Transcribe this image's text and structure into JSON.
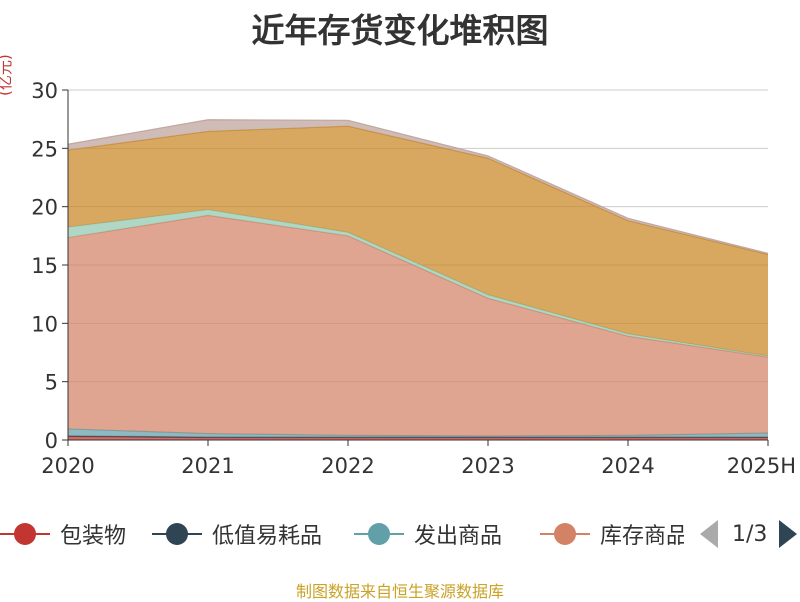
{
  "title": "近年存货变化堆积图",
  "unit": "(亿元)",
  "source": "制图数据来自恒生聚源数据库",
  "pager": "1/3",
  "chart_data": {
    "type": "area",
    "stacked": true,
    "categories": [
      "2020",
      "2021",
      "2022",
      "2023",
      "2024",
      "2025H"
    ],
    "ylim": [
      0,
      30
    ],
    "yticks": [
      0,
      5,
      10,
      15,
      20,
      25,
      30
    ],
    "series": [
      {
        "name": "包装物",
        "color": "#c23531",
        "values": [
          0.3,
          0.2,
          0.2,
          0.2,
          0.2,
          0.2
        ]
      },
      {
        "name": "低值易耗品",
        "color": "#2f4554",
        "values": [
          0.05,
          0.05,
          0.05,
          0.05,
          0.05,
          0.05
        ]
      },
      {
        "name": "发出商品",
        "color": "#61a0a8",
        "values": [
          0.6,
          0.3,
          0.15,
          0.1,
          0.15,
          0.35
        ]
      },
      {
        "name": "库存商品",
        "color": "#d48265",
        "values": [
          16.4,
          18.7,
          17.1,
          11.8,
          8.5,
          6.5
        ]
      },
      {
        "name": "",
        "color": "#91c7ae",
        "values": [
          0.9,
          0.5,
          0.3,
          0.3,
          0.2,
          0.1
        ]
      },
      {
        "name": "",
        "color": "#ca8622",
        "values": [
          6.6,
          6.7,
          9.1,
          11.7,
          9.7,
          8.7
        ]
      },
      {
        "name": "",
        "color": "#bda29a",
        "values": [
          0.5,
          1.0,
          0.5,
          0.2,
          0.2,
          0.1
        ]
      }
    ]
  },
  "legend": {
    "items": [
      {
        "label": "包装物",
        "color": "#c23531"
      },
      {
        "label": "低值易耗品",
        "color": "#2f4554"
      },
      {
        "label": "发出商品",
        "color": "#61a0a8"
      },
      {
        "label": "库存商品",
        "color": "#d48265"
      }
    ]
  }
}
